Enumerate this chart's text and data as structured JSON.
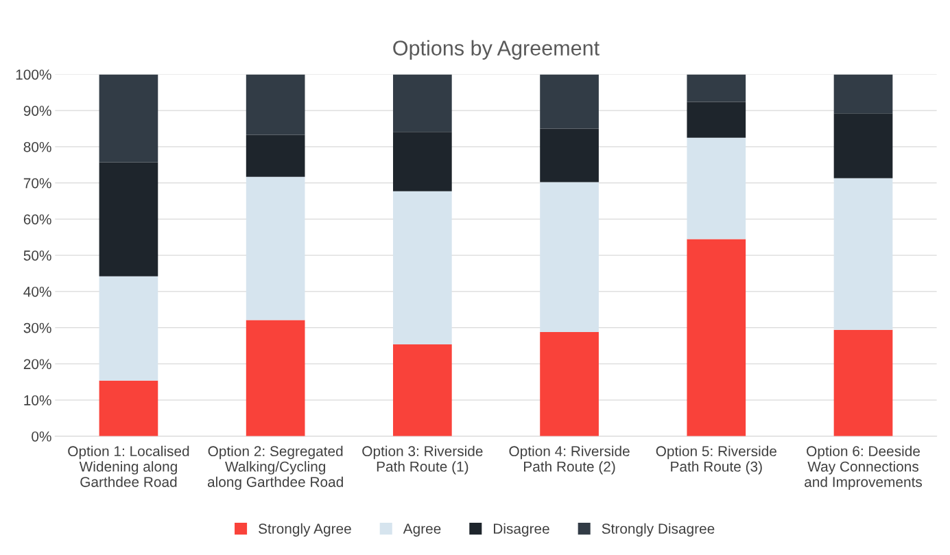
{
  "chart_data": {
    "type": "bar",
    "title": "Options by Agreement",
    "stacked": true,
    "categories": [
      "Option 1: Localised\nWidening along\nGarthdee Road",
      "Option 2: Segregated\nWalking/Cycling\nalong Garthdee Road",
      "Option 3: Riverside\nPath Route (1)",
      "Option 4: Riverside\nPath Route (2)",
      "Option 5: Riverside\nPath Route (3)",
      "Option 6: Deeside\nWay Connections\nand Improvements"
    ],
    "series": [
      {
        "name": "Strongly Agree",
        "color": "#f9423a",
        "values": [
          15.4,
          32.1,
          25.4,
          28.8,
          54.5,
          29.4
        ]
      },
      {
        "name": "Agree",
        "color": "#d6e4ee",
        "values": [
          28.8,
          39.6,
          42.3,
          41.4,
          28.0,
          41.9
        ]
      },
      {
        "name": "Disagree",
        "color": "#1e252c",
        "values": [
          31.5,
          11.6,
          16.4,
          14.8,
          9.9,
          17.9
        ]
      },
      {
        "name": "Strongly Disagree",
        "color": "#323c46",
        "values": [
          24.3,
          16.7,
          15.9,
          15.0,
          7.6,
          10.8
        ]
      }
    ],
    "ylim": [
      0,
      100
    ],
    "yticks": [
      {
        "value": 0,
        "label": "0%"
      },
      {
        "value": 10,
        "label": "10%"
      },
      {
        "value": 20,
        "label": "20%"
      },
      {
        "value": 30,
        "label": "30%"
      },
      {
        "value": 40,
        "label": "40%"
      },
      {
        "value": 50,
        "label": "50%"
      },
      {
        "value": 60,
        "label": "60%"
      },
      {
        "value": 70,
        "label": "70%"
      },
      {
        "value": 80,
        "label": "80%"
      },
      {
        "value": 90,
        "label": "90%"
      },
      {
        "value": 100,
        "label": "100%"
      }
    ],
    "grid": "y",
    "legend": "bottom"
  }
}
